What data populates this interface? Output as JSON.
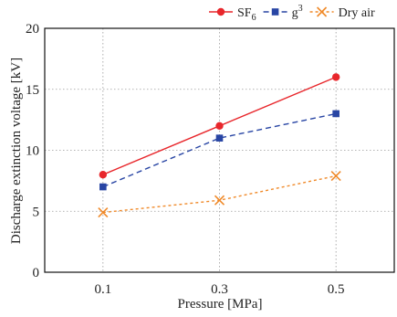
{
  "chart_data": {
    "type": "line",
    "title": "",
    "xlabel": "Pressure [MPa]",
    "ylabel": "Discharge extinction voltage [kV]",
    "categories": [
      "0.1",
      "0.3",
      "0.5"
    ],
    "x": [
      0.1,
      0.3,
      0.5
    ],
    "xlim": [
      0.0,
      0.6
    ],
    "ylim": [
      0,
      20
    ],
    "yticks": [
      "0",
      "5",
      "10",
      "15",
      "20"
    ],
    "grid": true,
    "legend_position": "top-right",
    "series": [
      {
        "name": "SF₆",
        "legend_main": "SF",
        "legend_sub": "6",
        "values": [
          8,
          12,
          16
        ],
        "color": "#e8262b",
        "line": "solid",
        "marker": "circle"
      },
      {
        "name": "g³",
        "legend_main": "g",
        "legend_sup": "3",
        "values": [
          7,
          11,
          13
        ],
        "color": "#2845a4",
        "line": "dashed",
        "marker": "square"
      },
      {
        "name": "Dry air",
        "legend_main": "Dry air",
        "values": [
          4.9,
          5.9,
          7.9
        ],
        "color": "#f08a2a",
        "line": "dotted",
        "marker": "x"
      }
    ]
  }
}
